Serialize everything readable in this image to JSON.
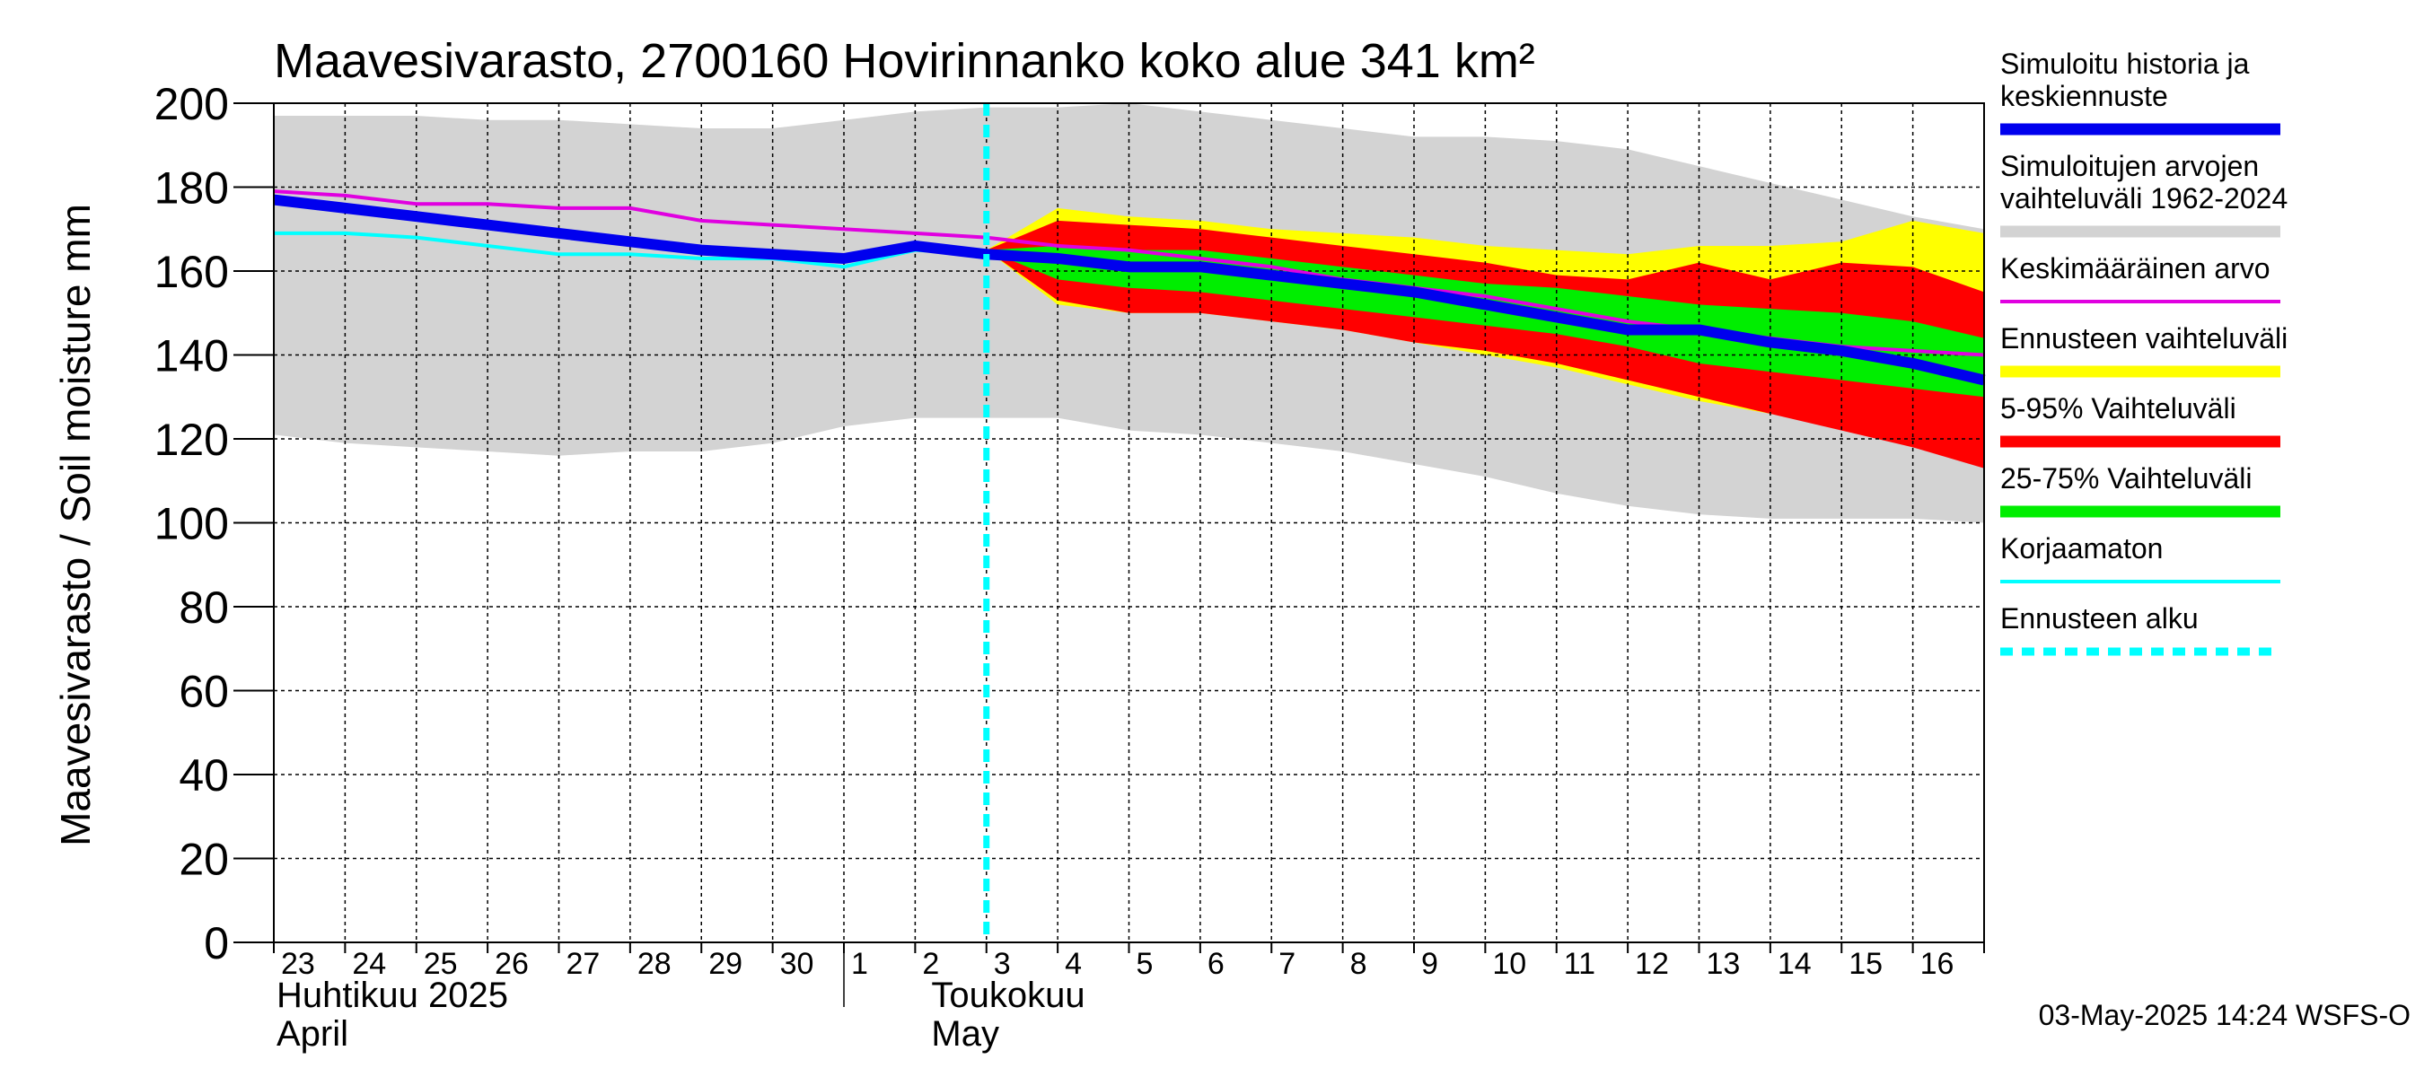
{
  "chart_data": {
    "type": "area",
    "title": "Maavesivarasto, 2700160 Hovirinnanko koko alue 341 km²",
    "ylabel": "Maavesivarasto / Soil moisture   mm",
    "ylim": [
      0,
      200
    ],
    "yticks": [
      0,
      20,
      40,
      60,
      80,
      100,
      120,
      140,
      160,
      180,
      200
    ],
    "xlim": [
      0,
      24
    ],
    "day_labels": [
      "23",
      "24",
      "25",
      "26",
      "27",
      "28",
      "29",
      "30",
      "1",
      "2",
      "3",
      "4",
      "5",
      "6",
      "7",
      "8",
      "9",
      "10",
      "11",
      "12",
      "13",
      "14",
      "15",
      "16"
    ],
    "month_labels": [
      {
        "line1": "Huhtikuu  2025",
        "line2": "April",
        "x": 0
      },
      {
        "line1": "Toukokuu",
        "line2": "May",
        "x": 9
      }
    ],
    "forecast_start_x": 10,
    "month_separator_x": 8,
    "series": [
      {
        "name": "hist_range",
        "kind": "band",
        "color": "#d3d3d3",
        "x": [
          0,
          1,
          2,
          3,
          4,
          5,
          6,
          7,
          8,
          9,
          10,
          11,
          12,
          13,
          14,
          15,
          16,
          17,
          18,
          19,
          20,
          21,
          22,
          23,
          24
        ],
        "upper": [
          197,
          197,
          197,
          196,
          196,
          195,
          194,
          194,
          196,
          198,
          199,
          199,
          200,
          198,
          196,
          194,
          192,
          192,
          191,
          189,
          185,
          181,
          177,
          173,
          170
        ],
        "lower": [
          121,
          119,
          118,
          117,
          116,
          117,
          117,
          119,
          123,
          125,
          125,
          125,
          122,
          121,
          119,
          117,
          114,
          111,
          107,
          104,
          102,
          101,
          101,
          101,
          100
        ]
      },
      {
        "name": "ens_range",
        "kind": "band",
        "color": "#ffff00",
        "x": [
          10,
          11,
          12,
          13,
          14,
          15,
          16,
          17,
          18,
          19,
          20,
          21,
          22,
          23,
          24
        ],
        "upper": [
          165,
          175,
          173,
          172,
          170,
          169,
          168,
          166,
          165,
          164,
          166,
          166,
          167,
          172,
          169
        ],
        "lower": [
          165,
          152,
          150,
          150,
          148,
          146,
          143,
          140,
          137,
          133,
          129,
          126,
          123,
          119,
          114
        ]
      },
      {
        "name": "p5_95",
        "kind": "band",
        "color": "#ff0000",
        "x": [
          10,
          11,
          12,
          13,
          14,
          15,
          16,
          17,
          18,
          19,
          20,
          21,
          22,
          23,
          24
        ],
        "upper": [
          165,
          172,
          171,
          170,
          168,
          166,
          164,
          162,
          159,
          158,
          162,
          158,
          162,
          161,
          155
        ],
        "lower": [
          165,
          153,
          150,
          150,
          148,
          146,
          143,
          141,
          138,
          134,
          130,
          126,
          122,
          118,
          113
        ]
      },
      {
        "name": "p25_75",
        "kind": "band",
        "color": "#00ee00",
        "x": [
          10,
          11,
          12,
          13,
          14,
          15,
          16,
          17,
          18,
          19,
          20,
          21,
          22,
          23,
          24
        ],
        "upper": [
          165,
          166,
          165,
          165,
          163,
          161,
          159,
          157,
          156,
          154,
          152,
          151,
          150,
          148,
          144
        ],
        "lower": [
          165,
          158,
          156,
          155,
          153,
          151,
          149,
          147,
          145,
          142,
          138,
          136,
          134,
          132,
          130
        ]
      },
      {
        "name": "korjaamaton",
        "kind": "line",
        "color": "#00ffff",
        "width": 4,
        "x": [
          0,
          1,
          2,
          3,
          4,
          5,
          6,
          7,
          8,
          9,
          10
        ],
        "y": [
          169,
          169,
          168,
          166,
          164,
          164,
          163,
          163,
          161,
          165,
          164
        ]
      },
      {
        "name": "keskimaarainen",
        "kind": "line",
        "color": "#e000e0",
        "width": 4,
        "x": [
          0,
          1,
          2,
          3,
          4,
          5,
          6,
          7,
          8,
          9,
          10,
          11,
          12,
          13,
          14,
          15,
          16,
          17,
          18,
          19,
          20,
          21,
          22,
          23,
          24
        ],
        "y": [
          179,
          178,
          176,
          176,
          175,
          175,
          172,
          171,
          170,
          169,
          168,
          166,
          165,
          163,
          161,
          158,
          156,
          154,
          151,
          148,
          146,
          144,
          142,
          141,
          140
        ]
      },
      {
        "name": "simuloitu",
        "kind": "line",
        "color": "#0000ee",
        "width": 12,
        "x": [
          0,
          1,
          2,
          3,
          4,
          5,
          6,
          7,
          8,
          9,
          10,
          11,
          12,
          13,
          14,
          15,
          16,
          17,
          18,
          19,
          20,
          21,
          22,
          23,
          24
        ],
        "y": [
          177,
          175,
          173,
          171,
          169,
          167,
          165,
          164,
          163,
          166,
          164,
          163,
          161,
          161,
          159,
          157,
          155,
          152,
          149,
          146,
          146,
          143,
          141,
          138,
          134
        ]
      }
    ]
  },
  "legend": [
    {
      "label": "Simuloitu historia ja\nkeskiennuste",
      "color": "#0000ee",
      "style": "thick"
    },
    {
      "label": "Simuloitujen arvojen\nvaihteluväli 1962-2024",
      "color": "#d3d3d3",
      "style": "thick"
    },
    {
      "label": "Keskimääräinen arvo",
      "color": "#e000e0",
      "style": "thin"
    },
    {
      "label": "Ennusteen vaihteluväli",
      "color": "#ffff00",
      "style": "thick"
    },
    {
      "label": "5-95% Vaihteluväli",
      "color": "#ff0000",
      "style": "thick"
    },
    {
      "label": "25-75% Vaihteluväli",
      "color": "#00ee00",
      "style": "thick"
    },
    {
      "label": "Korjaamaton",
      "color": "#00ffff",
      "style": "thin"
    },
    {
      "label": "Ennusteen alku",
      "color": "#00ffff",
      "style": "dashed"
    }
  ],
  "timestamp": "03-May-2025 14:24 WSFS-O"
}
